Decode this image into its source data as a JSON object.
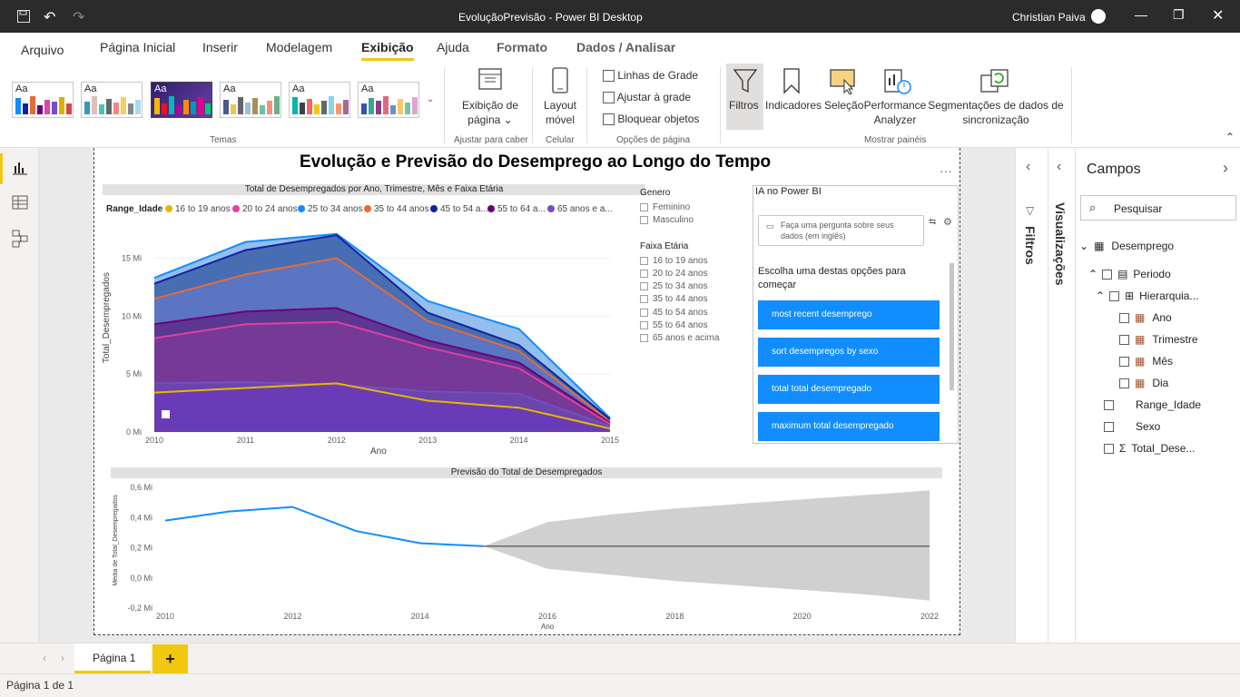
{
  "titlebar": {
    "title": "EvoluçãoPrevisão - Power BI Desktop",
    "user": "Christian Paiva"
  },
  "tabs": [
    "Arquivo",
    "Página Inicial",
    "Inserir",
    "Modelagem",
    "Exibição",
    "Ajuda",
    "Formato",
    "Dados / Analisar"
  ],
  "ribbon": {
    "themes_label": "Temas",
    "aa": "Aa",
    "page_view": "Exibição de",
    "page_view2": "página",
    "fit_label": "Ajustar para caber",
    "mobile_layout": "Layout",
    "mobile_layout2": "móvel",
    "mobile_label": "Celular",
    "options": [
      "Linhas de Grade",
      "Ajustar à grade",
      "Bloquear objetos"
    ],
    "options_label": "Opções de página",
    "panes": [
      "Filtros",
      "Indicadores",
      "Seleção",
      "Performance",
      "Analyzer",
      "Segmentações de dados de",
      "sincronização"
    ],
    "panes_label": "Mostrar painéis"
  },
  "report": {
    "title": "Evolução e Previsão do Desemprego ao Longo do Tempo",
    "area_title": "Total de Desempregados por Ano, Trimestre, Mês e Faixa Etária",
    "legend_title": "Range_Idade",
    "legend": [
      {
        "name": "16 to 19 anos",
        "color": "#e6b800"
      },
      {
        "name": "20 to 24 anos",
        "color": "#e040a0"
      },
      {
        "name": "25 to 34 anos",
        "color": "#118dff"
      },
      {
        "name": "35 to 44 anos",
        "color": "#e66c37"
      },
      {
        "name": "45 to 54 a...",
        "color": "#12239e"
      },
      {
        "name": "55 to 64 a...",
        "color": "#6b007b"
      },
      {
        "name": "65 anos e a...",
        "color": "#744ec2"
      }
    ],
    "area_ylabel": "Total_Desempregados",
    "area_xlabel": "Ano",
    "area_yticks": [
      "0 Mi",
      "5 Mi",
      "10 Mi",
      "15 Mi"
    ],
    "forecast_title": "Previsão do Total de Desempregados",
    "forecast_ylabel": "Média de Total_Desempregados",
    "forecast_xlabel": "Ano",
    "forecast_yticks": [
      "-0,2 Mi",
      "0,0 Mi",
      "0,2 Mi",
      "0,4 Mi",
      "0,6 Mi"
    ],
    "slicer_genero": {
      "title": "Genero",
      "items": [
        "Feminino",
        "Masculino"
      ]
    },
    "slicer_faixa": {
      "title": "Faixa Etária",
      "items": [
        "16 to 19 anos",
        "20 to 24 anos",
        "25 to 34 anos",
        "35 to 44 anos",
        "45 to 54 anos",
        "55 to 64 anos",
        "65 anos e acima"
      ]
    },
    "qa": {
      "title": "IA no Power BI",
      "placeholder": "Faça uma pergunta sobre seus dados (em inglês)",
      "prompt": "Escolha uma destas opções para começar",
      "suggestions": [
        "most recent desemprego",
        "sort desempregos by sexo",
        "total total desempregado",
        "maximum total desempregado"
      ]
    }
  },
  "chart_data": [
    {
      "type": "area",
      "title": "Total de Desempregados por Ano, Trimestre, Mês e Faixa Etária",
      "xlabel": "Ano",
      "ylabel": "Total_Desempregados",
      "x": [
        2010,
        2011,
        2012,
        2013,
        2014,
        2015
      ],
      "ylim": [
        0,
        17
      ],
      "yticks": [
        0,
        5,
        10,
        15
      ],
      "y_unit": "Mi",
      "legend_title": "Range_Idade",
      "series": [
        {
          "name": "25 to 34 anos",
          "values": [
            13.3,
            16.4,
            17.1,
            11.3,
            8.9,
            1.2
          ]
        },
        {
          "name": "45 to 54 a...",
          "values": [
            12.8,
            15.7,
            17.0,
            10.3,
            7.5,
            1.1
          ]
        },
        {
          "name": "35 to 44 a...",
          "values": [
            11.5,
            13.6,
            15.0,
            9.6,
            7.0,
            0.9
          ]
        },
        {
          "name": "55 to 64 a...",
          "values": [
            9.3,
            10.4,
            10.7,
            7.9,
            6.0,
            0.8
          ]
        },
        {
          "name": "20 to 24 anos",
          "values": [
            8.1,
            9.3,
            9.5,
            7.3,
            5.5,
            0.7
          ]
        },
        {
          "name": "65 anos e a...",
          "values": [
            4.2,
            4.3,
            4.1,
            3.5,
            3.3,
            0.5
          ]
        },
        {
          "name": "16 to 19 anos",
          "values": [
            3.4,
            3.8,
            4.2,
            2.7,
            2.1,
            0.3
          ]
        }
      ]
    },
    {
      "type": "line",
      "title": "Previsão do Total de Desempregados",
      "xlabel": "Ano",
      "ylabel": "Média de Total_Desempregados",
      "x": [
        2010,
        2011,
        2012,
        2013,
        2014,
        2015
      ],
      "values": [
        0.38,
        0.44,
        0.47,
        0.31,
        0.23,
        0.21
      ],
      "forecast": {
        "x": [
          2015,
          2016,
          2017,
          2018,
          2019,
          2020,
          2021,
          2022
        ],
        "value": 0.21,
        "upper": [
          0.21,
          0.37,
          0.42,
          0.46,
          0.49,
          0.52,
          0.55,
          0.58
        ],
        "lower": [
          0.21,
          0.06,
          0.02,
          -0.02,
          -0.05,
          -0.08,
          -0.11,
          -0.15
        ]
      },
      "xticks": [
        2010,
        2012,
        2014,
        2016,
        2018,
        2020,
        2022
      ],
      "ylim": [
        -0.2,
        0.6
      ],
      "yticks": [
        -0.2,
        0,
        0.2,
        0.4,
        0.6
      ],
      "y_unit": "Mi"
    }
  ],
  "panes": {
    "filters": "Filtros",
    "visualizations": "Visualizações",
    "fields": "Campos",
    "search": "Pesquisar"
  },
  "fields": {
    "table": "Desemprego",
    "date": "Periodo",
    "hier": "Hierarquia...",
    "levels": [
      "Ano",
      "Trimestre",
      "Mês",
      "Dia"
    ],
    "cols": [
      "Range_Idade",
      "Sexo",
      "Total_Dese..."
    ]
  },
  "bottom": {
    "page_tab": "Página 1",
    "add": "+",
    "status": "Página 1 de 1"
  }
}
